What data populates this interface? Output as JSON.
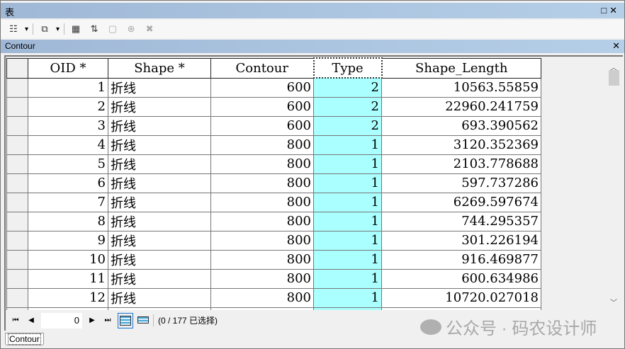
{
  "window": {
    "title": "表",
    "maximize_icon": "square-icon",
    "close_icon": "x-icon"
  },
  "toolbar": {
    "items": [
      {
        "name": "table-options-icon",
        "glyph": "☷",
        "disabled": false
      },
      {
        "name": "related-tables-icon",
        "glyph": "⧉",
        "disabled": false
      },
      {
        "name": "select-by-attributes-icon",
        "glyph": "▦",
        "disabled": false
      },
      {
        "name": "switch-selection-icon",
        "glyph": "⇅",
        "disabled": false
      },
      {
        "name": "clear-selection-icon",
        "glyph": "▢",
        "disabled": true
      },
      {
        "name": "zoom-to-selected-icon",
        "glyph": "⊕",
        "disabled": true
      },
      {
        "name": "delete-selected-icon",
        "glyph": "✖",
        "disabled": true
      }
    ]
  },
  "table_tab": {
    "title": "Contour"
  },
  "grid": {
    "columns": [
      "OID *",
      "Shape *",
      "Contour",
      "Type",
      "Shape_Length"
    ],
    "selected_column": "Type",
    "rows": [
      [
        "1",
        "折线",
        "600",
        "2",
        "10563.55859"
      ],
      [
        "2",
        "折线",
        "600",
        "2",
        "22960.241759"
      ],
      [
        "3",
        "折线",
        "600",
        "2",
        "693.390562"
      ],
      [
        "4",
        "折线",
        "800",
        "1",
        "3120.352369"
      ],
      [
        "5",
        "折线",
        "800",
        "1",
        "2103.778688"
      ],
      [
        "6",
        "折线",
        "800",
        "1",
        "597.737286"
      ],
      [
        "7",
        "折线",
        "800",
        "1",
        "6269.597674"
      ],
      [
        "8",
        "折线",
        "800",
        "1",
        "744.295357"
      ],
      [
        "9",
        "折线",
        "800",
        "1",
        "301.226194"
      ],
      [
        "10",
        "折线",
        "800",
        "1",
        "916.469877"
      ],
      [
        "11",
        "折线",
        "800",
        "1",
        "600.634986"
      ],
      [
        "12",
        "折线",
        "800",
        "1",
        "10720.027018"
      ]
    ]
  },
  "navigation": {
    "current_record": "0",
    "status": "(0 / 177 已选择)"
  },
  "bottom_tab": {
    "label": "Contour"
  },
  "watermark": {
    "text": "公众号 · 码农设计师"
  },
  "colors": {
    "selected_column": "#aaffff",
    "title_bar": "#b6cfe8"
  }
}
